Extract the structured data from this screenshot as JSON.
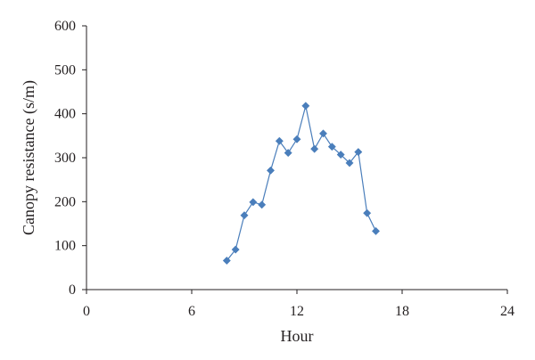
{
  "chart_data": {
    "type": "line",
    "title": "",
    "xlabel": "Hour",
    "ylabel": "Canopy resistance (s/m)",
    "xlim": [
      0,
      24
    ],
    "ylim": [
      0,
      600
    ],
    "xticks": [
      "0",
      "6",
      "12",
      "18",
      "24"
    ],
    "yticks": [
      "0",
      "100",
      "200",
      "300",
      "400",
      "500",
      "600"
    ],
    "grid": false,
    "legend": "none",
    "series": [
      {
        "marker": "diamond",
        "color": "#4a7ebb",
        "x": [
          8.0,
          8.5,
          9.0,
          9.5,
          10.0,
          10.5,
          11.0,
          11.5,
          12.0,
          12.5,
          13.0,
          13.5,
          14.0,
          14.5,
          15.0,
          15.5,
          16.0,
          16.5
        ],
        "y": [
          66,
          91,
          169,
          199,
          193,
          271,
          338,
          311,
          342,
          418,
          320,
          355,
          325,
          307,
          288,
          313,
          174,
          133
        ]
      }
    ]
  }
}
